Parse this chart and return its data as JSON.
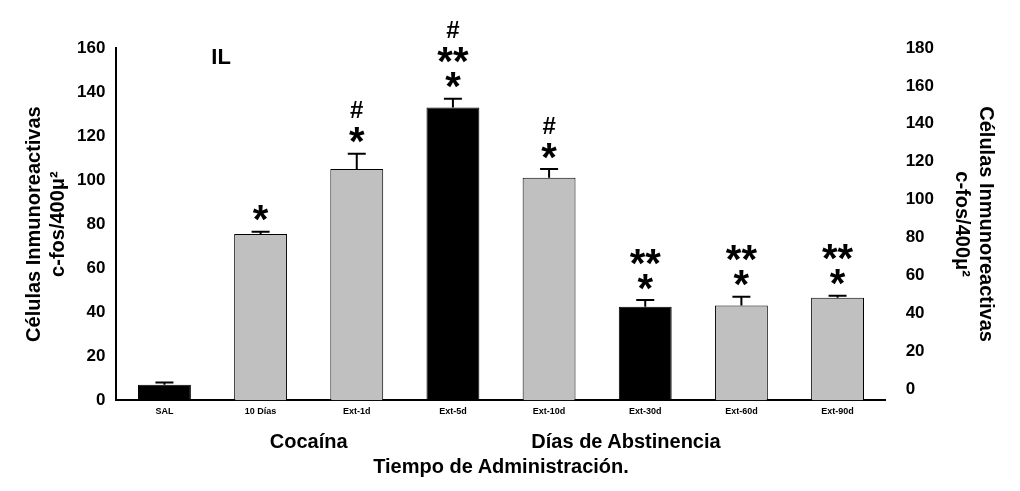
{
  "chart_data": {
    "type": "bar",
    "ylabel": "Células Inmunoreactivas\nc-fos/400μ²",
    "y2label": "Células Inmunoreactivas\nc-fos/400μ²",
    "xlabel": "Tiempo de Administración.",
    "categories": [
      "SAL",
      "10 Días",
      "Ext-1d",
      "Ext-5d",
      "Ext-10d",
      "Ext-30d",
      "Ext-60d",
      "Ext-90d"
    ],
    "values": [
      7,
      75.5,
      105,
      133,
      101,
      42.5,
      43,
      46.5
    ],
    "errors": [
      [
        7,
        8
      ],
      [
        75.5,
        76.5
      ],
      [
        105,
        112
      ],
      [
        133,
        137
      ],
      [
        101,
        105
      ],
      [
        42.5,
        45.5
      ],
      [
        43,
        47
      ],
      [
        46.5,
        47.5
      ]
    ],
    "colors": [
      "#000000",
      "#c0c0c0",
      "#c0c0c0",
      "#000000",
      "#c0c0c0",
      "#000000",
      "#c0c0c0",
      "#c0c0c0"
    ],
    "ylim": [
      0,
      160
    ],
    "yticks": [
      0,
      20,
      40,
      60,
      80,
      100,
      120,
      140,
      160
    ],
    "y2lim": [
      -6,
      180
    ],
    "y2ticks": [
      0,
      20,
      40,
      60,
      80,
      100,
      120,
      140,
      160,
      180
    ],
    "grid": false,
    "legend": false,
    "annotations": [
      "IL",
      "Cocaína",
      "Días de Abstinencia",
      "*",
      "*",
      "#",
      "*",
      "**",
      "#",
      "*",
      "#",
      "*",
      "**",
      "*",
      "**",
      "*",
      "**"
    ]
  }
}
